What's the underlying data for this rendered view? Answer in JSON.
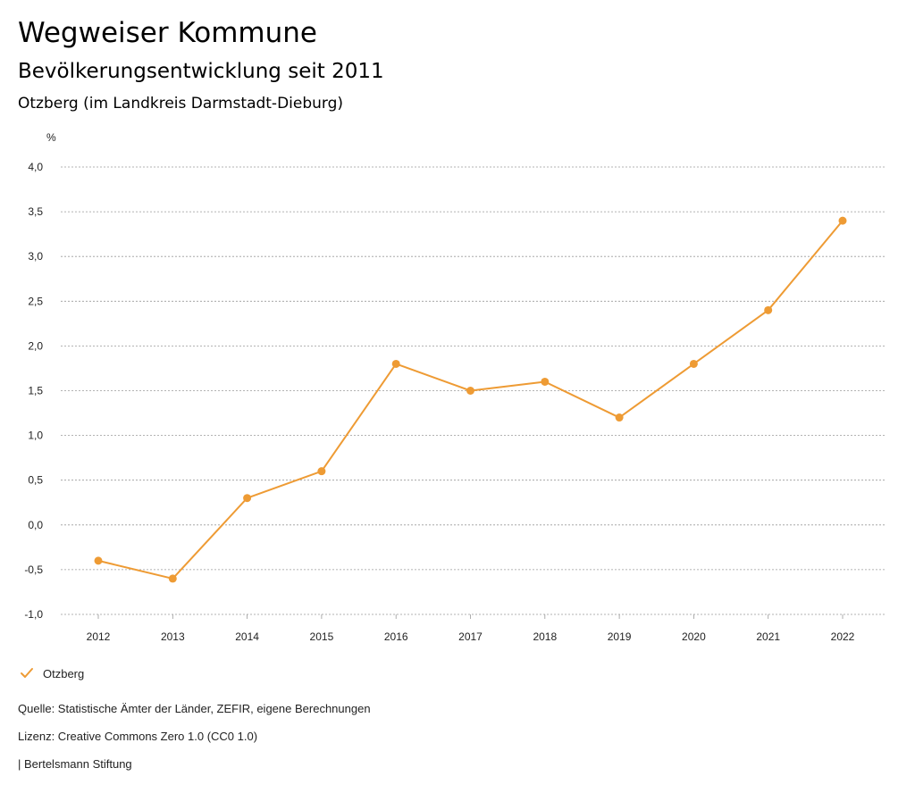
{
  "header": {
    "title": "Wegweiser Kommune",
    "subtitle": "Bevölkerungsentwicklung seit 2011",
    "region": "Otzberg (im Landkreis Darmstadt-Dieburg)"
  },
  "chart_data": {
    "type": "line",
    "title": "Bevölkerungsentwicklung seit 2011",
    "ylabel": "%",
    "xlabel": "",
    "ylim": [
      -1.0,
      4.0
    ],
    "yticks": [
      -1.0,
      -0.5,
      0.0,
      0.5,
      1.0,
      1.5,
      2.0,
      2.5,
      3.0,
      3.5,
      4.0
    ],
    "ytick_labels": [
      "-1,0",
      "-0,5",
      "0,0",
      "0,5",
      "1,0",
      "1,5",
      "2,0",
      "2,5",
      "3,0",
      "3,5",
      "4,0"
    ],
    "categories": [
      "2012",
      "2013",
      "2014",
      "2015",
      "2016",
      "2017",
      "2018",
      "2019",
      "2020",
      "2021",
      "2022"
    ],
    "series": [
      {
        "name": "Otzberg",
        "color": "#ee9b34",
        "values": [
          -0.4,
          -0.6,
          0.3,
          0.6,
          1.8,
          1.5,
          1.6,
          1.2,
          1.8,
          2.4,
          3.4
        ]
      }
    ],
    "grid": true,
    "legend_position": "bottom-left"
  },
  "legend": {
    "items": [
      {
        "label": "Otzberg",
        "icon": "check-icon",
        "color": "#ee9b34"
      }
    ]
  },
  "footer": {
    "source": "Quelle: Statistische Ämter der Länder, ZEFIR, eigene Berechnungen",
    "license": "Lizenz: Creative Commons Zero 1.0 (CC0 1.0)",
    "credit": "| Bertelsmann Stiftung"
  }
}
